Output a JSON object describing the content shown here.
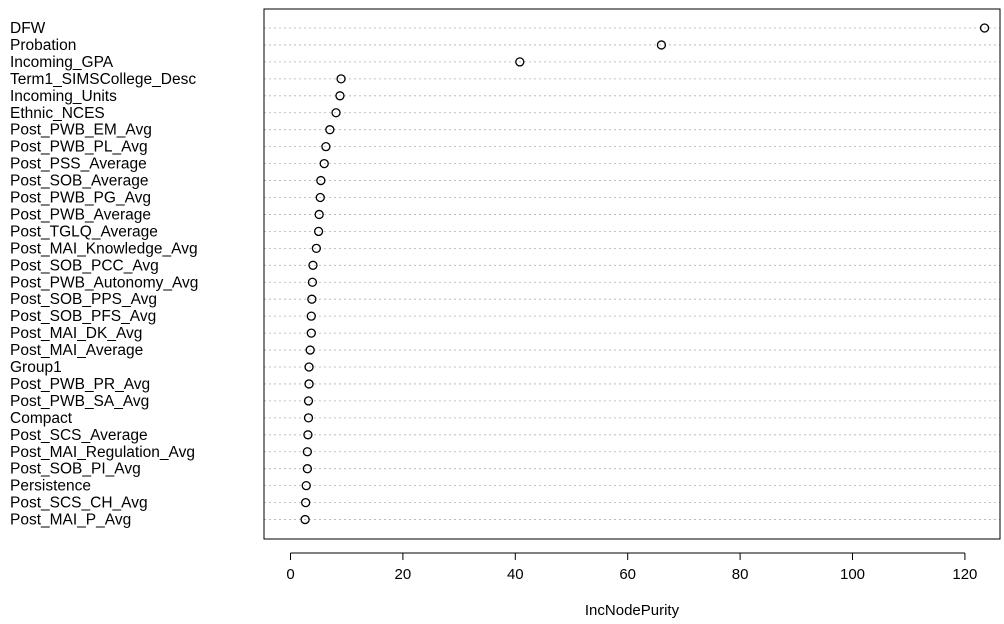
{
  "chart_data": {
    "type": "scatter",
    "title": "",
    "xlabel": "IncNodePurity",
    "ylabel": "",
    "xlim": [
      -5,
      125
    ],
    "xticks": [
      0,
      20,
      40,
      60,
      80,
      100,
      120
    ],
    "grid": "dotted horizontal",
    "marker": "open circle",
    "categories": [
      "DFW",
      "Probation",
      "Incoming_GPA",
      "Term1_SIMSCollege_Desc",
      "Incoming_Units",
      "Ethnic_NCES",
      "Post_PWB_EM_Avg",
      "Post_PWB_PL_Avg",
      "Post_PSS_Average",
      "Post_SOB_Average",
      "Post_PWB_PG_Avg",
      "Post_PWB_Average",
      "Post_TGLQ_Average",
      "Post_MAI_Knowledge_Avg",
      "Post_SOB_PCC_Avg",
      "Post_PWB_Autonomy_Avg",
      "Post_SOB_PPS_Avg",
      "Post_SOB_PFS_Avg",
      "Post_MAI_DK_Avg",
      "Post_MAI_Average",
      "Group1",
      "Post_PWB_PR_Avg",
      "Post_PWB_SA_Avg",
      "Compact",
      "Post_SCS_Average",
      "Post_MAI_Regulation_Avg",
      "Post_SOB_PI_Avg",
      "Persistence",
      "Post_SCS_CH_Avg",
      "Post_MAI_P_Avg"
    ],
    "values": [
      123.5,
      66,
      40.8,
      9,
      8.8,
      8.1,
      7,
      6.3,
      6,
      5.4,
      5.3,
      5.1,
      5,
      4.6,
      4,
      3.9,
      3.8,
      3.7,
      3.7,
      3.5,
      3.3,
      3.3,
      3.2,
      3.2,
      3.1,
      3,
      3,
      2.8,
      2.7,
      2.6
    ]
  }
}
